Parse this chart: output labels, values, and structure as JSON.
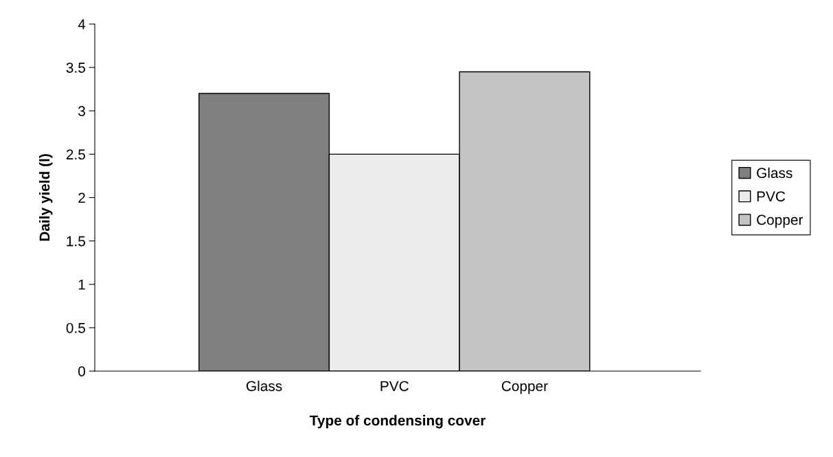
{
  "chart_data": {
    "type": "bar",
    "xlabel": "Type of condensing cover",
    "ylabel": "Daily yield (l)",
    "categories": [
      "Glass",
      "PVC",
      "Copper"
    ],
    "series": [
      {
        "name": "Glass",
        "color": "#808080",
        "values": [
          3.2,
          null,
          null
        ]
      },
      {
        "name": "PVC",
        "color": "#ececec",
        "values": [
          null,
          2.5,
          null
        ]
      },
      {
        "name": "Copper",
        "color": "#c4c4c4",
        "values": [
          null,
          null,
          3.45
        ]
      }
    ],
    "ylim": [
      0,
      4
    ],
    "yticks": [
      0,
      0.5,
      1,
      1.5,
      2,
      2.5,
      3,
      3.5,
      4
    ],
    "grid": false,
    "legend": "right"
  }
}
